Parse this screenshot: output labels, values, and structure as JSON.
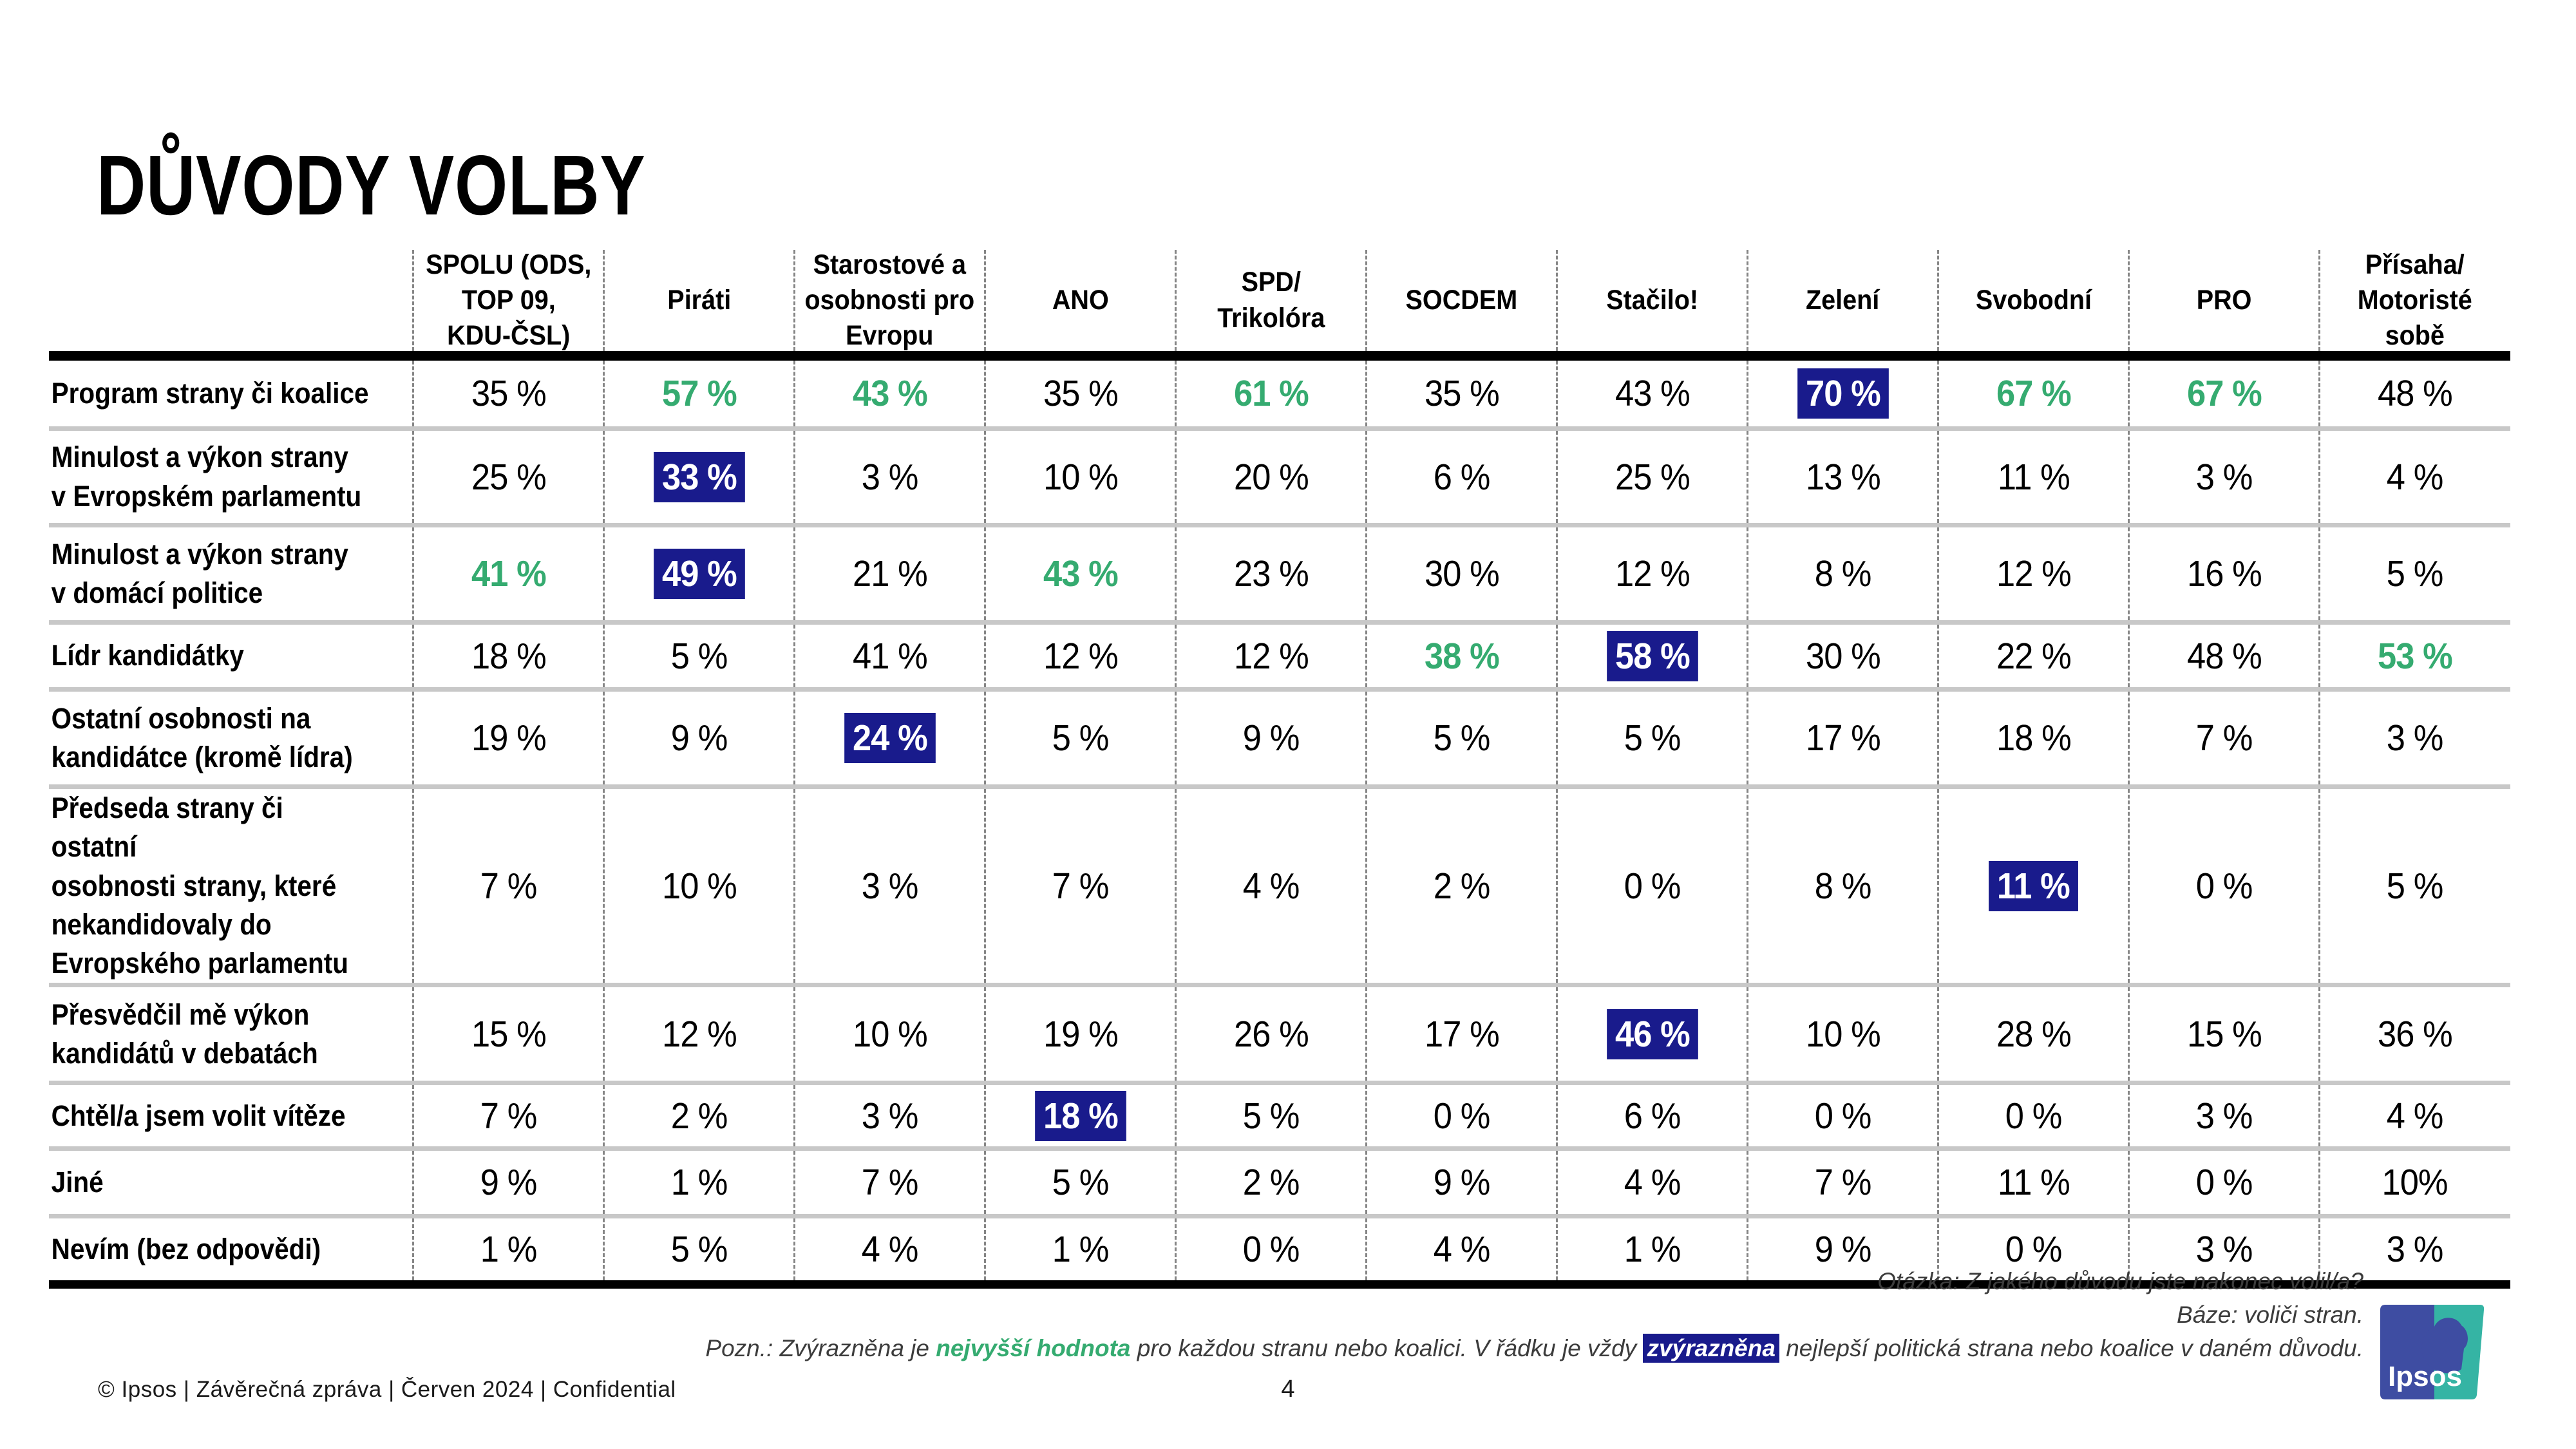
{
  "title": "DŮVODY VOLBY",
  "colors": {
    "green": "#35ab70",
    "navy": "#191b8c",
    "logo_blue": "#3e4da2",
    "logo_teal": "#35b4a4",
    "logo_text": "#ffffff"
  },
  "chart_data": {
    "type": "table",
    "columns": [
      "SPOLU (ODS,\nTOP 09,\nKDU-ČSL)",
      "Piráti",
      "Starostové a\nosobnosti pro\nEvropu",
      "ANO",
      "SPD/\nTrikolóra",
      "SOCDEM",
      "Stačilo!",
      "Zelení",
      "Svobodní",
      "PRO",
      "Přísaha/\nMotoristé\nsobě"
    ],
    "style_codes": {
      "p": "plain black",
      "g": "green = highest value for that party",
      "n": "navy highlight = best party for that reason"
    },
    "rows": [
      {
        "label": "Program strany či koalice",
        "values": [
          "35 %",
          "57 %",
          "43 %",
          "35 %",
          "61 %",
          "35 %",
          "43 %",
          "70 %",
          "67 %",
          "67 %",
          "48 %"
        ],
        "styles": [
          "p",
          "g",
          "g",
          "p",
          "g",
          "p",
          "p",
          "n",
          "g",
          "g",
          "p"
        ]
      },
      {
        "label": "Minulost a výkon strany\nv Evropském parlamentu",
        "values": [
          "25 %",
          "33 %",
          "3 %",
          "10 %",
          "20 %",
          "6 %",
          "25 %",
          "13 %",
          "11 %",
          "3 %",
          "4 %"
        ],
        "styles": [
          "p",
          "n",
          "p",
          "p",
          "p",
          "p",
          "p",
          "p",
          "p",
          "p",
          "p"
        ]
      },
      {
        "label": "Minulost a výkon strany\nv domácí politice",
        "values": [
          "41 %",
          "49 %",
          "21 %",
          "43 %",
          "23 %",
          "30 %",
          "12 %",
          "8 %",
          "12 %",
          "16 %",
          "5 %"
        ],
        "styles": [
          "g",
          "n",
          "p",
          "g",
          "p",
          "p",
          "p",
          "p",
          "p",
          "p",
          "p"
        ]
      },
      {
        "label": "Lídr kandidátky",
        "values": [
          "18 %",
          "5 %",
          "41 %",
          "12 %",
          "12 %",
          "38 %",
          "58 %",
          "30 %",
          "22 %",
          "48 %",
          "53 %"
        ],
        "styles": [
          "p",
          "p",
          "p",
          "p",
          "p",
          "g",
          "n",
          "p",
          "p",
          "p",
          "g"
        ]
      },
      {
        "label": "Ostatní osobnosti na\nkandidátce (kromě lídra)",
        "values": [
          "19 %",
          "9 %",
          "24 %",
          "5 %",
          "9 %",
          "5 %",
          "5 %",
          "17 %",
          "18 %",
          "7 %",
          "3 %"
        ],
        "styles": [
          "p",
          "p",
          "n",
          "p",
          "p",
          "p",
          "p",
          "p",
          "p",
          "p",
          "p"
        ]
      },
      {
        "label": "Předseda strany či ostatní\nosobnosti strany, které\nnekandidovaly do\nEvropského parlamentu",
        "values": [
          "7 %",
          "10 %",
          "3 %",
          "7 %",
          "4 %",
          "2 %",
          "0 %",
          "8 %",
          "11 %",
          "0 %",
          "5 %"
        ],
        "styles": [
          "p",
          "p",
          "p",
          "p",
          "p",
          "p",
          "p",
          "p",
          "n",
          "p",
          "p"
        ]
      },
      {
        "label": "Přesvědčil mě výkon\nkandidátů v debatách",
        "values": [
          "15 %",
          "12 %",
          "10 %",
          "19 %",
          "26 %",
          "17 %",
          "46 %",
          "10 %",
          "28 %",
          "15 %",
          "36 %"
        ],
        "styles": [
          "p",
          "p",
          "p",
          "p",
          "p",
          "p",
          "n",
          "p",
          "p",
          "p",
          "p"
        ]
      },
      {
        "label": "Chtěl/a jsem volit vítěze",
        "values": [
          "7 %",
          "2 %",
          "3 %",
          "18 %",
          "5 %",
          "0 %",
          "6 %",
          "0 %",
          "0 %",
          "3 %",
          "4 %"
        ],
        "styles": [
          "p",
          "p",
          "p",
          "n",
          "p",
          "p",
          "p",
          "p",
          "p",
          "p",
          "p"
        ]
      },
      {
        "label": "Jiné",
        "values": [
          "9 %",
          "1 %",
          "7 %",
          "5 %",
          "2 %",
          "9 %",
          "4 %",
          "7 %",
          "11 %",
          "0 %",
          "10%"
        ],
        "styles": [
          "p",
          "p",
          "p",
          "p",
          "p",
          "p",
          "p",
          "p",
          "p",
          "p",
          "p"
        ]
      },
      {
        "label": "Nevím (bez odpovědi)",
        "values": [
          "1 %",
          "5 %",
          "4 %",
          "1 %",
          "0 %",
          "4 %",
          "1 %",
          "9 %",
          "0 %",
          "3 %",
          "3 %"
        ],
        "styles": [
          "p",
          "p",
          "p",
          "p",
          "p",
          "p",
          "p",
          "p",
          "p",
          "p",
          "p"
        ]
      }
    ]
  },
  "footer": {
    "left": "© Ipsos | Závěrečná zpráva | Červen 2024 | Confidential",
    "page": "4",
    "note_question": "Otázka: Z jakého důvodu jste nakonec volil/a?",
    "note_base": "Báze: voliči stran.",
    "note_prefix": "Pozn.: Zvýrazněna je ",
    "note_green": "nejvyšší hodnota",
    "note_mid": " pro každou stranu nebo koalici. V řádku je vždy ",
    "note_navy": "zvýrazněna",
    "note_suffix": " nejlepší politická strana nebo koalice v daném důvodu."
  },
  "logo": {
    "text": "Ipsos"
  }
}
